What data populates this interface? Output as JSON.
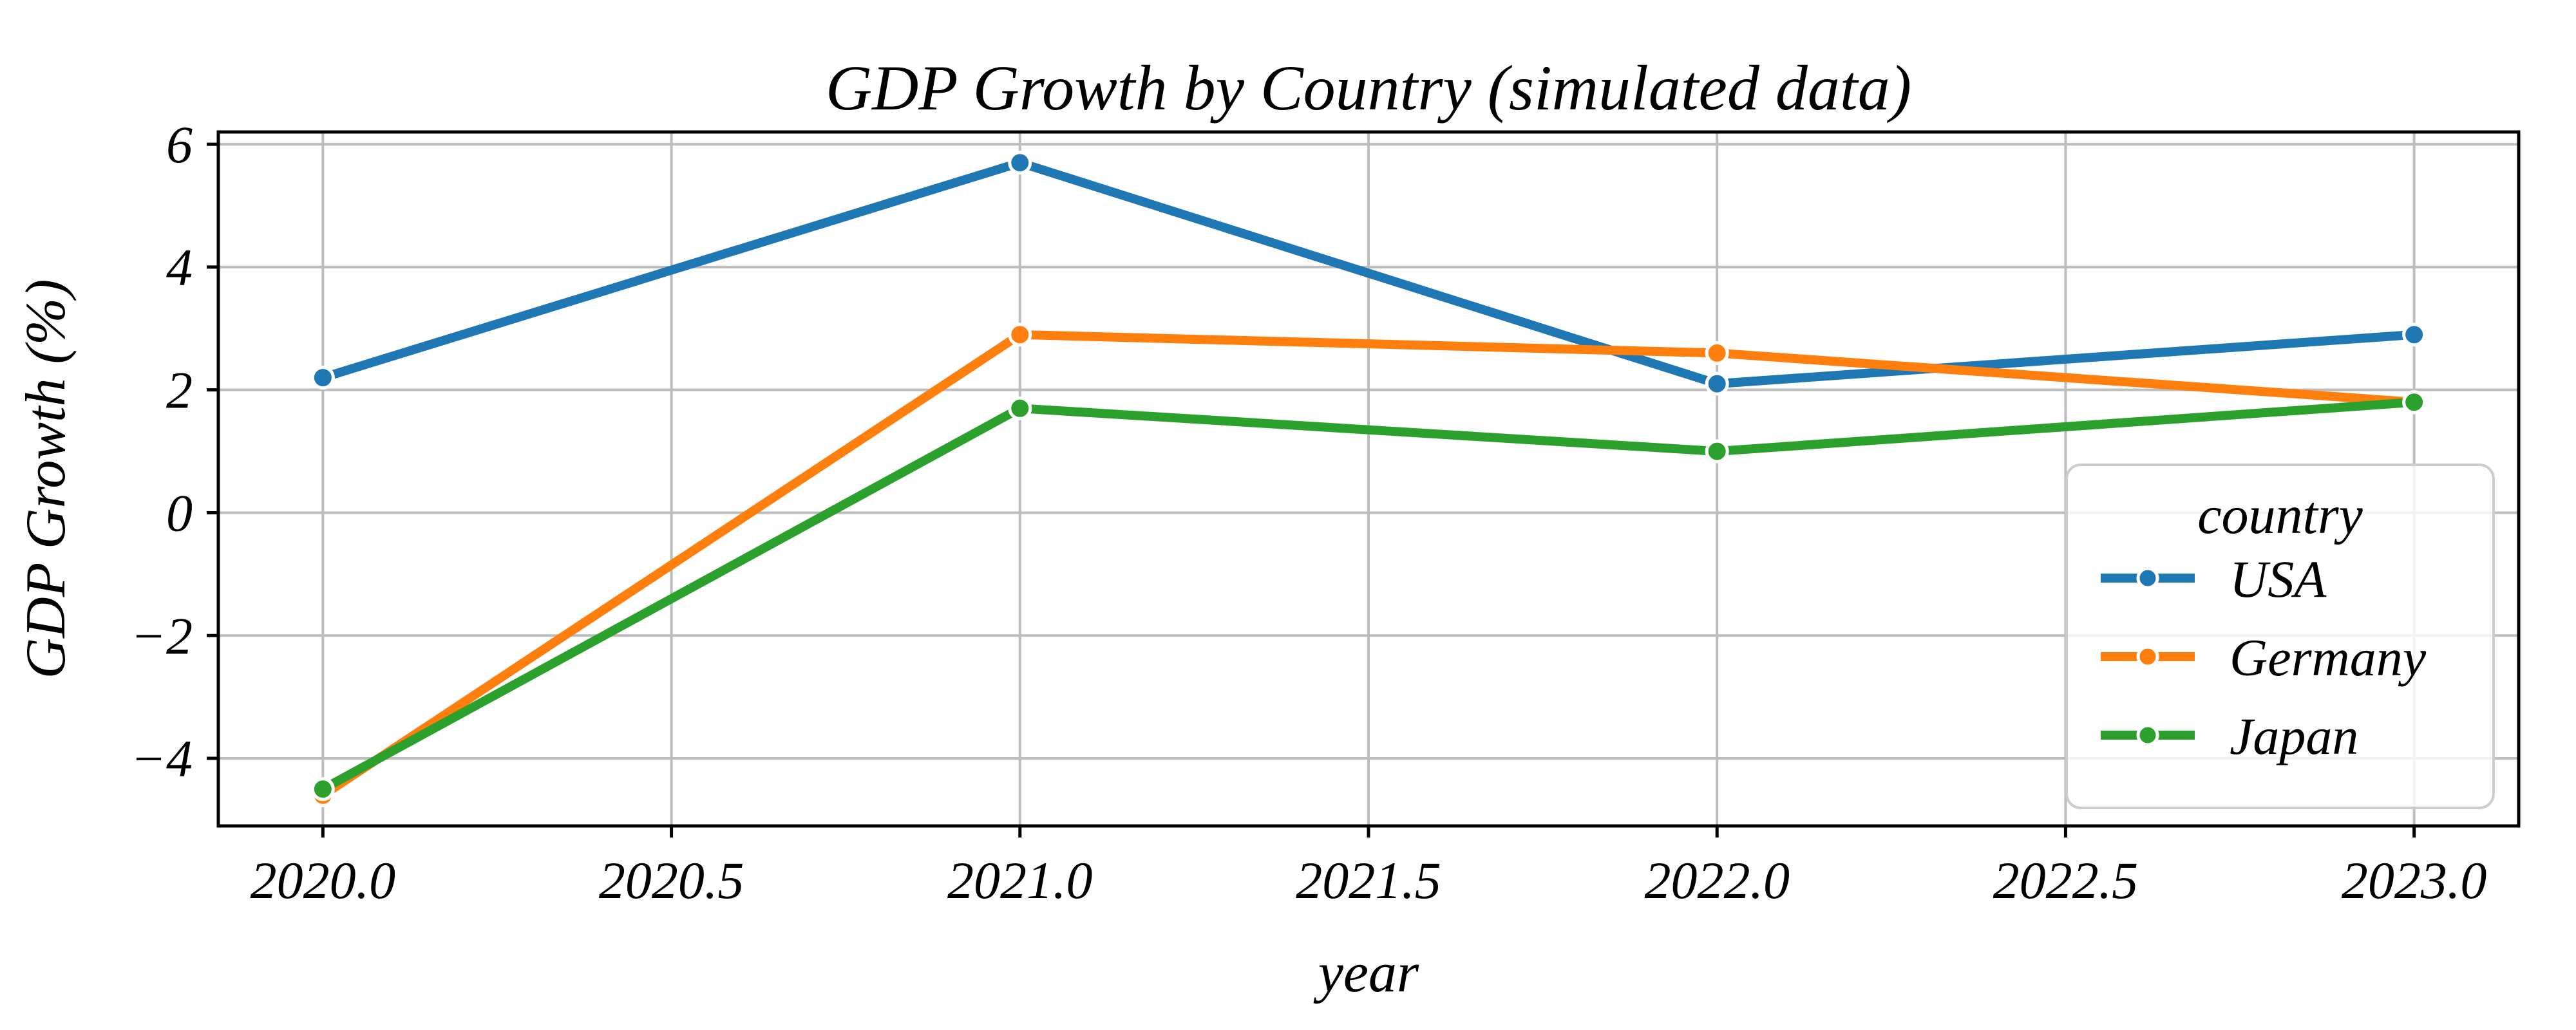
{
  "chart_data": {
    "type": "line",
    "title": "GDP Growth by Country (simulated data)",
    "xlabel": "year",
    "ylabel": "GDP Growth (%)",
    "x": [
      2020,
      2021,
      2022,
      2023
    ],
    "series": [
      {
        "name": "USA",
        "color": "#1f77b4",
        "values": [
          2.2,
          5.7,
          2.1,
          2.9
        ]
      },
      {
        "name": "Germany",
        "color": "#ff7f0e",
        "values": [
          -4.6,
          2.9,
          2.6,
          1.8
        ]
      },
      {
        "name": "Japan",
        "color": "#2ca02c",
        "values": [
          -4.5,
          1.7,
          1.0,
          1.8
        ]
      }
    ],
    "axes": {
      "xlim": [
        2019.85,
        2023.15
      ],
      "ylim": [
        -5.1,
        6.2
      ],
      "xticks": [
        2020.0,
        2020.5,
        2021.0,
        2021.5,
        2022.0,
        2022.5,
        2023.0
      ],
      "xticklabels": [
        "2020.0",
        "2020.5",
        "2021.0",
        "2021.5",
        "2022.0",
        "2022.5",
        "2023.0"
      ],
      "yticks": [
        -4,
        -2,
        0,
        2,
        4,
        6
      ],
      "yticklabels": [
        "−4",
        "−2",
        "0",
        "2",
        "4",
        "6"
      ],
      "grid": true
    },
    "legend": {
      "title": "country",
      "position": "lower right",
      "entries": [
        "USA",
        "Germany",
        "Japan"
      ]
    },
    "colors": {
      "background": "#ffffff",
      "grid": "#bdbdbd",
      "spine": "#000000",
      "text": "#000000",
      "legend_border": "#cccccc",
      "legend_fill_alpha": 0.8,
      "marker_edge": "#ffffff"
    },
    "marker": "o"
  }
}
